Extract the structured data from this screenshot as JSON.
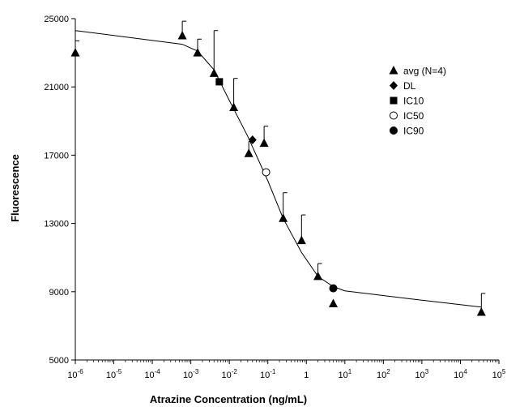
{
  "chart_data": {
    "type": "scatter",
    "xlabel": "Atrazine Concentration (ng/mL)",
    "ylabel": "Fluorescence",
    "xscale": "log",
    "xlim": [
      1e-06,
      100000.0
    ],
    "ylim": [
      5000,
      25000
    ],
    "x_tick_labels": [
      {
        "value": 1e-06,
        "base": "10",
        "exp": "-6"
      },
      {
        "value": 1e-05,
        "base": "10",
        "exp": "-5"
      },
      {
        "value": 0.0001,
        "base": "10",
        "exp": "-4"
      },
      {
        "value": 0.001,
        "base": "10",
        "exp": "-3"
      },
      {
        "value": 0.01,
        "base": "10",
        "exp": "-2"
      },
      {
        "value": 0.1,
        "base": "10",
        "exp": "-1"
      },
      {
        "value": 1,
        "base": "1",
        "exp": ""
      },
      {
        "value": 10,
        "base": "10",
        "exp": "1"
      },
      {
        "value": 100,
        "base": "10",
        "exp": "2"
      },
      {
        "value": 1000,
        "base": "10",
        "exp": "3"
      },
      {
        "value": 10000,
        "base": "10",
        "exp": "4"
      },
      {
        "value": 100000,
        "base": "10",
        "exp": "5"
      }
    ],
    "y_tick_labels": [
      "5000",
      "9000",
      "13000",
      "17000",
      "21000",
      "25000"
    ],
    "y_ticks": [
      5000,
      9000,
      13000,
      17000,
      21000,
      25000
    ],
    "grid": false,
    "legend_position": "top-right",
    "series": [
      {
        "name": "avg (N=4)",
        "marker": "triangle",
        "points": [
          {
            "x": 1e-06,
            "y": 23000,
            "err": 700
          },
          {
            "x": 0.0006,
            "y": 24000,
            "err": 850
          },
          {
            "x": 0.0015,
            "y": 23000,
            "err": 800
          },
          {
            "x": 0.004,
            "y": 21800,
            "err": 2500
          },
          {
            "x": 0.013,
            "y": 19800,
            "err": 1700
          },
          {
            "x": 0.032,
            "y": 17100,
            "err": 700
          },
          {
            "x": 0.08,
            "y": 17700,
            "err": 1000
          },
          {
            "x": 0.25,
            "y": 13300,
            "err": 1500
          },
          {
            "x": 0.75,
            "y": 12000,
            "err": 1500
          },
          {
            "x": 2.0,
            "y": 9900,
            "err": 750
          },
          {
            "x": 5.0,
            "y": 8300,
            "err": 0
          },
          {
            "x": 35000.0,
            "y": 7800,
            "err": 1100
          }
        ]
      },
      {
        "name": "DL",
        "marker": "diamond",
        "points": [
          {
            "x": 0.04,
            "y": 17900
          }
        ]
      },
      {
        "name": "IC10",
        "marker": "square",
        "points": [
          {
            "x": 0.0055,
            "y": 21300
          }
        ]
      },
      {
        "name": "IC50",
        "marker": "circle-open",
        "points": [
          {
            "x": 0.09,
            "y": 16000
          }
        ]
      },
      {
        "name": "IC90",
        "marker": "circle-filled",
        "points": [
          {
            "x": 5.0,
            "y": 9200
          }
        ]
      }
    ],
    "fit_curve": [
      [
        1e-06,
        24300
      ],
      [
        0.0006,
        23500
      ],
      [
        0.0015,
        23100
      ],
      [
        0.004,
        22000
      ],
      [
        0.01,
        20200
      ],
      [
        0.03,
        18100
      ],
      [
        0.1,
        15500
      ],
      [
        0.25,
        13300
      ],
      [
        0.75,
        11300
      ],
      [
        2,
        9900
      ],
      [
        5,
        9300
      ],
      [
        10.0,
        9050
      ],
      [
        1000.0,
        8500
      ],
      [
        35000.0,
        8100
      ]
    ]
  }
}
